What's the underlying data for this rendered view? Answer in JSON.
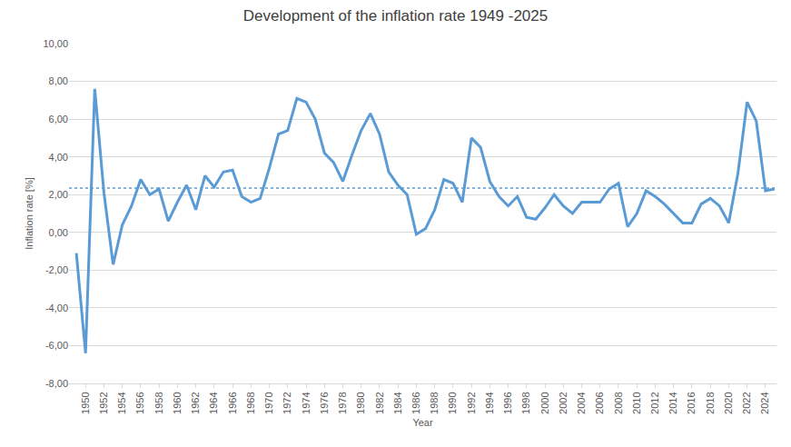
{
  "chart_data": {
    "type": "line",
    "title": "Development of the inflation rate 1949 -2025",
    "x_label": "Year",
    "y_label": "Inflation rate [%]",
    "x": [
      1949,
      1950,
      1951,
      1952,
      1953,
      1954,
      1955,
      1956,
      1957,
      1958,
      1959,
      1960,
      1961,
      1962,
      1963,
      1964,
      1965,
      1966,
      1967,
      1968,
      1969,
      1970,
      1971,
      1972,
      1973,
      1974,
      1975,
      1976,
      1977,
      1978,
      1979,
      1980,
      1981,
      1982,
      1983,
      1984,
      1985,
      1986,
      1987,
      1988,
      1989,
      1990,
      1991,
      1992,
      1993,
      1994,
      1995,
      1996,
      1997,
      1998,
      1999,
      2000,
      2001,
      2002,
      2003,
      2004,
      2005,
      2006,
      2007,
      2008,
      2009,
      2010,
      2011,
      2012,
      2013,
      2014,
      2015,
      2016,
      2017,
      2018,
      2019,
      2020,
      2021,
      2022,
      2023,
      2024,
      2025
    ],
    "values": [
      -1.1,
      -6.4,
      7.6,
      2.1,
      -1.7,
      0.4,
      1.4,
      2.8,
      2.0,
      2.3,
      0.6,
      1.6,
      2.5,
      1.2,
      3.0,
      2.4,
      3.2,
      3.3,
      1.9,
      1.6,
      1.8,
      3.4,
      5.2,
      5.4,
      7.1,
      6.9,
      6.0,
      4.2,
      3.7,
      2.7,
      4.1,
      5.4,
      6.3,
      5.2,
      3.2,
      2.5,
      2.0,
      -0.1,
      0.2,
      1.2,
      2.8,
      2.6,
      1.6,
      5.0,
      4.5,
      2.7,
      1.9,
      1.4,
      1.9,
      0.8,
      0.7,
      1.3,
      2.0,
      1.4,
      1.0,
      1.6,
      1.6,
      1.6,
      2.3,
      2.6,
      0.3,
      1.0,
      2.2,
      1.9,
      1.5,
      1.0,
      0.5,
      0.5,
      1.5,
      1.8,
      1.4,
      0.5,
      3.1,
      6.9,
      5.9,
      2.2,
      2.3
    ],
    "color": "#5b9bd5",
    "mean_line": 2.35,
    "xlim": [
      1948.2,
      2025.2
    ],
    "xticks": [
      1950,
      1952,
      1954,
      1956,
      1958,
      1960,
      1962,
      1964,
      1966,
      1968,
      1970,
      1972,
      1974,
      1976,
      1978,
      1980,
      1982,
      1984,
      1986,
      1988,
      1990,
      1992,
      1994,
      1996,
      1998,
      2000,
      2002,
      2004,
      2006,
      2008,
      2010,
      2012,
      2014,
      2016,
      2018,
      2020,
      2022,
      2024
    ],
    "ylim": [
      -8,
      10
    ],
    "yticks": [
      {
        "value": -8,
        "label": "-8,00"
      },
      {
        "value": -6,
        "label": "-6,00"
      },
      {
        "value": -4,
        "label": "-4,00"
      },
      {
        "value": -2,
        "label": "-2,00"
      },
      {
        "value": 0,
        "label": "0,00"
      },
      {
        "value": 2,
        "label": "2,00"
      },
      {
        "value": 4,
        "label": "4,00"
      },
      {
        "value": 6,
        "label": "6,00"
      },
      {
        "value": 8,
        "label": "8,00"
      },
      {
        "value": 10,
        "label": "10,00"
      }
    ],
    "grid": true
  }
}
